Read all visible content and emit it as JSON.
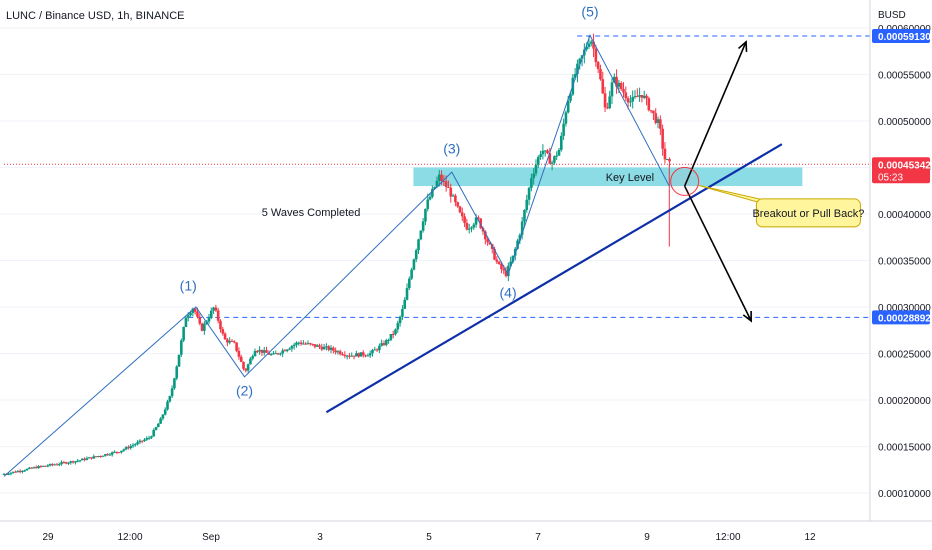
{
  "header": {
    "title": "LUNC / Binance USD, 1h, BINANCE",
    "currency": "BUSD"
  },
  "chart_data": {
    "type": "candlestick",
    "title": "LUNC / Binance USD, 1h, BINANCE",
    "y_axis_unit": "BUSD",
    "ylim": [
      7e-05,
      0.00063
    ],
    "y_ticks": [
      "0.00010000",
      "0.00015000",
      "0.00020000",
      "0.00025000",
      "0.00030000",
      "0.00035000",
      "0.00040000",
      "0.00045000",
      "0.00050000",
      "0.00055000",
      "0.00060000"
    ],
    "x_ticks": [
      "29",
      "12:00",
      "Sep",
      "3",
      "5",
      "7",
      "9",
      "12:00",
      "12"
    ],
    "price_path": [
      [
        28.0,
        0.00012
      ],
      [
        28.7,
        0.000128
      ],
      [
        29.5,
        0.000135
      ],
      [
        30.3,
        0.000145
      ],
      [
        30.9,
        0.00016
      ],
      [
        31.1,
        0.000178
      ],
      [
        31.3,
        0.000205
      ],
      [
        31.45,
        0.000245
      ],
      [
        31.6,
        0.00029
      ],
      [
        31.75,
        0.0003
      ],
      [
        31.9,
        0.000275
      ],
      [
        32.15,
        0.0003
      ],
      [
        32.35,
        0.000265
      ],
      [
        32.55,
        0.00026
      ],
      [
        32.75,
        0.00023
      ],
      [
        32.95,
        0.000255
      ],
      [
        33.3,
        0.000248
      ],
      [
        33.8,
        0.000262
      ],
      [
        34.4,
        0.000255
      ],
      [
        34.8,
        0.000248
      ],
      [
        35.2,
        0.00025
      ],
      [
        35.5,
        0.000262
      ],
      [
        35.7,
        0.000275
      ],
      [
        35.85,
        0.0003
      ],
      [
        36.0,
        0.00034
      ],
      [
        36.15,
        0.000375
      ],
      [
        36.3,
        0.00041
      ],
      [
        36.55,
        0.00044
      ],
      [
        36.75,
        0.000425
      ],
      [
        36.95,
        0.0004
      ],
      [
        37.1,
        0.000385
      ],
      [
        37.3,
        0.000395
      ],
      [
        37.5,
        0.00037
      ],
      [
        37.7,
        0.000345
      ],
      [
        37.85,
        0.000335
      ],
      [
        38.0,
        0.000355
      ],
      [
        38.15,
        0.000385
      ],
      [
        38.35,
        0.00044
      ],
      [
        38.55,
        0.00047
      ],
      [
        38.75,
        0.000455
      ],
      [
        38.9,
        0.00047
      ],
      [
        39.05,
        0.00052
      ],
      [
        39.2,
        0.00055
      ],
      [
        39.35,
        0.00057
      ],
      [
        39.5,
        0.000591
      ],
      [
        39.65,
        0.00056
      ],
      [
        39.8,
        0.00051
      ],
      [
        39.95,
        0.000545
      ],
      [
        40.1,
        0.000535
      ],
      [
        40.3,
        0.00052
      ],
      [
        40.5,
        0.00053
      ],
      [
        40.7,
        0.00051
      ],
      [
        40.85,
        0.000495
      ],
      [
        40.95,
        0.00046
      ],
      [
        41.05,
        0.000453
      ]
    ],
    "wave_path": [
      [
        28.0,
        0.000118
      ],
      [
        31.75,
        0.0003
      ],
      [
        32.7,
        0.000225
      ],
      [
        36.75,
        0.000445
      ],
      [
        37.85,
        0.000335
      ],
      [
        39.45,
        0.000592
      ],
      [
        41.0,
        0.00043
      ]
    ],
    "wave_labels": [
      {
        "label": "(1)",
        "x": 31.6,
        "y": 0.000318
      },
      {
        "label": "(2)",
        "x": 32.7,
        "y": 0.000205
      },
      {
        "label": "(3)",
        "x": 36.75,
        "y": 0.000465
      },
      {
        "label": "(4)",
        "x": 37.85,
        "y": 0.00031
      },
      {
        "label": "(5)",
        "x": 39.45,
        "y": 0.000612
      }
    ],
    "trendline": [
      [
        34.3,
        0.000187
      ],
      [
        43.2,
        0.000475
      ]
    ],
    "key_level": {
      "label": "Key Level",
      "y_top": 0.00045,
      "y_bottom": 0.00043,
      "x_from": 36.0,
      "x_to": 43.6
    },
    "levels": [
      {
        "value": 0.0005913,
        "label": "0.00059130",
        "color": "#2962ff",
        "x_from": 39.2
      },
      {
        "value": 0.00028892,
        "label": "0.00028892",
        "color": "#2962ff",
        "x_from": 31.6
      },
      {
        "value": 0.00045342,
        "label": "0.00045342",
        "sub": "05:23",
        "color": "#f23645",
        "x_from": 28.0
      }
    ],
    "arrows": [
      {
        "from": [
          41.3,
          0.00043
        ],
        "to": [
          42.5,
          0.000585
        ]
      },
      {
        "from": [
          41.3,
          0.00043
        ],
        "to": [
          42.6,
          0.000285
        ]
      }
    ],
    "annotations": {
      "waves_text": {
        "text": "5 Waves Completed",
        "x": 34.0,
        "y": 0.000398
      },
      "callout": {
        "text": "Breakout or Pull Back?",
        "x": 42.8,
        "y": 0.000399,
        "fill": "#fff59d",
        "stroke": "#c8a800"
      },
      "circle": {
        "x": 41.3,
        "y": 0.000435,
        "color": "#f23645"
      }
    },
    "colors": {
      "up": "#089981",
      "down": "#f23645",
      "wave": "#2f6fc0",
      "trend": "#0d2fa8",
      "key_level": "#7fd8e2",
      "grid": "#f0f3fa"
    }
  }
}
